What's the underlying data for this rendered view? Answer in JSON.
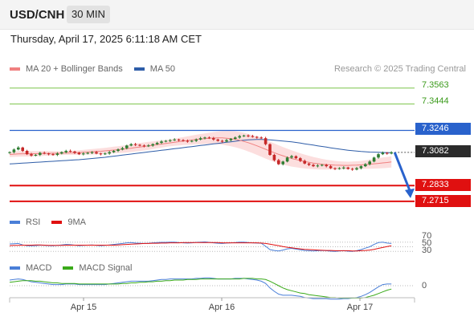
{
  "header": {
    "pair": "USD/CNH",
    "timeframe": "30 MIN"
  },
  "datetime": "Thursday, April 17, 2025 6:11:18 AM CET",
  "legend": {
    "ma20_label": "MA 20 + Bollinger Bands",
    "ma50_label": "MA 50",
    "rsi_label": "RSI",
    "rsi_signal_label": "9MA",
    "macd_label": "MACD",
    "macd_signal_label": "MACD Signal"
  },
  "credit": "Research © 2025 Trading Central",
  "colors": {
    "ma20": "#f08080",
    "ma50": "#2e5da8",
    "band": "#fbd3d3",
    "green_level": "#7cc44a",
    "pivot": "#2962cc",
    "support": "#e01010",
    "candle_up": "#2e7d32",
    "candle_down": "#c62828",
    "arrow": "#2962cc",
    "rsi": "#4a7fd8",
    "rsi_ma": "#e01010",
    "macd": "#4a7fd8",
    "macd_signal": "#3aaa1a"
  },
  "levels": [
    {
      "value": 7.3563,
      "label": "7.3563",
      "kind": "resistance-target",
      "style": "green"
    },
    {
      "value": 7.3444,
      "label": "7.3444",
      "kind": "resistance-target",
      "style": "green"
    },
    {
      "value": 7.3246,
      "label": "7.3246",
      "kind": "pivot",
      "style": "blue"
    },
    {
      "value": 7.3082,
      "label": "7.3082",
      "kind": "last-price",
      "style": "dark"
    },
    {
      "value": 7.2833,
      "label": "7.2833",
      "kind": "support-target",
      "style": "red"
    },
    {
      "value": 7.2715,
      "label": "7.2715",
      "kind": "support-target",
      "style": "red"
    }
  ],
  "rsi_ticks": [
    "70",
    "50",
    "30"
  ],
  "macd_ticks": [
    "0"
  ],
  "chart_data": {
    "type": "candlestick",
    "symbol": "USD/CNH",
    "interval": "30 MIN",
    "x_ticks": [
      "Apr 15",
      "Apr 16",
      "Apr 17"
    ],
    "ylim": [
      7.263,
      7.3652
    ],
    "close": [
      7.3083,
      7.3103,
      7.3118,
      7.3093,
      7.3068,
      7.3058,
      7.3063,
      7.3078,
      7.3073,
      7.3068,
      7.3063,
      7.3073,
      7.3083,
      7.3093,
      7.3088,
      7.3078,
      7.3068,
      7.3073,
      7.3078,
      7.3083,
      7.3073,
      7.3068,
      7.3073,
      7.3083,
      7.3093,
      7.3103,
      7.3113,
      7.3133,
      7.3143,
      7.3138,
      7.3133,
      7.3128,
      7.3133,
      7.3143,
      7.3153,
      7.3163,
      7.3168,
      7.3173,
      7.3178,
      7.3173,
      7.3168,
      7.3163,
      7.3168,
      7.3178,
      7.3188,
      7.3193,
      7.3188,
      7.3178,
      7.3168,
      7.3163,
      7.3173,
      7.3183,
      7.3193,
      7.3203,
      7.3208,
      7.3203,
      7.3198,
      7.3193,
      7.3188,
      7.3143,
      7.3063,
      7.3023,
      7.2993,
      7.3013,
      7.3043,
      7.3053,
      7.3038,
      7.3018,
      7.2998,
      7.2988,
      7.2978,
      7.2983,
      7.2988,
      7.2978,
      7.2963,
      7.2958,
      7.2963,
      7.2968,
      7.2958,
      7.2953,
      7.2963,
      7.2978,
      7.2993,
      7.3013,
      7.3043,
      7.3068,
      7.3078,
      7.3073,
      7.3082
    ],
    "ma20": [
      7.3066,
      7.3068,
      7.307,
      7.3071,
      7.3071,
      7.3071,
      7.3072,
      7.3073,
      7.3074,
      7.3074,
      7.3075,
      7.3075,
      7.3076,
      7.3077,
      7.3078,
      7.3079,
      7.308,
      7.3082,
      7.3084,
      7.3086,
      7.3088,
      7.309,
      7.3093,
      7.3096,
      7.3099,
      7.3102,
      7.3105,
      7.3109,
      7.3113,
      7.3118,
      7.3122,
      7.3126,
      7.3131,
      7.3135,
      7.314,
      7.3144,
      7.3149,
      7.3153,
      7.3158,
      7.3162,
      7.3166,
      7.317,
      7.3174,
      7.3178,
      7.3181,
      7.3184,
      7.3187,
      7.3189,
      7.319,
      7.319,
      7.3188,
      7.3185,
      7.318,
      7.3173,
      7.3164,
      7.3154,
      7.3143,
      7.3131,
      7.3118,
      7.3105,
      7.3092,
      7.3079,
      7.3067,
      7.3056,
      7.3046,
      7.3036,
      7.3028,
      7.302,
      7.3013,
      7.3007,
      7.3001,
      7.2997,
      7.2993,
      7.299,
      7.2988,
      7.2986,
      7.2985,
      7.2984,
      7.2984,
      7.2985,
      7.2986,
      7.2988,
      7.299,
      7.2993,
      7.2996,
      7.2999,
      7.3003,
      7.3006,
      7.301
    ],
    "ma50": [
      7.2995,
      7.2997,
      7.2999,
      7.3001,
      7.3003,
      7.3005,
      7.3007,
      7.3009,
      7.3011,
      7.3013,
      7.3015,
      7.3017,
      7.3019,
      7.3021,
      7.3023,
      7.3025,
      7.3027,
      7.303,
      7.3033,
      7.3036,
      7.3039,
      7.3042,
      7.3045,
      7.3049,
      7.3053,
      7.3057,
      7.3061,
      7.3065,
      7.3069,
      7.3073,
      7.3077,
      7.3081,
      7.3085,
      7.3089,
      7.3093,
      7.3097,
      7.3101,
      7.3105,
      7.3109,
      7.3113,
      7.3117,
      7.3121,
      7.3125,
      7.3129,
      7.3133,
      7.3137,
      7.3141,
      7.3145,
      7.3149,
      7.3153,
      7.3157,
      7.3161,
      7.3165,
      7.3169,
      7.3173,
      7.3175,
      7.3177,
      7.3178,
      7.3178,
      7.3177,
      7.3175,
      7.3173,
      7.317,
      7.3167,
      7.3164,
      7.316,
      7.3156,
      7.3151,
      7.3146,
      7.3141,
      7.3136,
      7.3131,
      7.3126,
      7.3121,
      7.3116,
      7.3111,
      7.3106,
      7.3102,
      7.3098,
      7.3094,
      7.3091,
      7.3088,
      7.3086,
      7.3084,
      7.3083,
      7.3082,
      7.3081,
      7.308,
      7.3079
    ],
    "band_width": [
      0.002,
      0.002,
      0.0021,
      0.0021,
      0.0021,
      0.0021,
      0.002,
      0.0019,
      0.0018,
      0.0017,
      0.0016,
      0.0015,
      0.0014,
      0.0014,
      0.0015,
      0.0016,
      0.0017,
      0.0018,
      0.0019,
      0.002,
      0.0021,
      0.0022,
      0.0023,
      0.0024,
      0.0025,
      0.0026,
      0.0027,
      0.0028,
      0.0029,
      0.003,
      0.003,
      0.003,
      0.003,
      0.0029,
      0.0028,
      0.0027,
      0.0026,
      0.0026,
      0.0027,
      0.0028,
      0.003,
      0.0032,
      0.0034,
      0.0036,
      0.0038,
      0.004,
      0.0042,
      0.0045,
      0.0048,
      0.0051,
      0.0054,
      0.0057,
      0.006,
      0.0062,
      0.0064,
      0.0066,
      0.0067,
      0.0068,
      0.0069,
      0.007,
      0.007,
      0.0069,
      0.0068,
      0.0066,
      0.0064,
      0.0061,
      0.0058,
      0.0055,
      0.0052,
      0.0049,
      0.0046,
      0.0043,
      0.004,
      0.0037,
      0.0034,
      0.0032,
      0.003,
      0.0029,
      0.0028,
      0.0028,
      0.0029,
      0.003,
      0.0032,
      0.0034,
      0.0036,
      0.0038,
      0.004,
      0.0041,
      0.0042
    ],
    "rsi": [
      62,
      63,
      64,
      58,
      55,
      54,
      55,
      57,
      56,
      55,
      54,
      56,
      58,
      60,
      59,
      57,
      55,
      56,
      57,
      58,
      56,
      55,
      56,
      58,
      60,
      62,
      64,
      67,
      68,
      66,
      65,
      64,
      65,
      67,
      68,
      69,
      69,
      70,
      70,
      68,
      67,
      66,
      67,
      69,
      70,
      71,
      69,
      67,
      65,
      64,
      66,
      67,
      68,
      70,
      70,
      68,
      67,
      66,
      65,
      52,
      38,
      34,
      32,
      36,
      41,
      43,
      40,
      37,
      34,
      33,
      32,
      33,
      34,
      33,
      31,
      30,
      32,
      33,
      31,
      30,
      33,
      38,
      44,
      50,
      60,
      68,
      70,
      66,
      64
    ],
    "rsi_9ma": [
      55,
      56,
      56,
      57,
      57,
      57,
      58,
      58,
      57,
      56,
      56,
      56,
      56,
      57,
      57,
      57,
      57,
      57,
      57,
      57,
      57,
      57,
      57,
      57,
      57,
      58,
      59,
      60,
      61,
      62,
      63,
      64,
      64,
      65,
      65,
      66,
      66,
      67,
      67,
      67,
      68,
      68,
      68,
      68,
      68,
      68,
      68,
      68,
      68,
      67,
      67,
      67,
      67,
      67,
      67,
      67,
      67,
      67,
      66,
      64,
      61,
      58,
      55,
      51,
      48,
      46,
      43,
      41,
      39,
      38,
      37,
      36,
      35,
      34,
      34,
      33,
      33,
      33,
      33,
      32,
      32,
      33,
      34,
      36,
      39,
      43,
      47,
      51,
      54
    ],
    "macd": [
      0.001,
      0.0011,
      0.0012,
      0.0011,
      0.0009,
      0.0007,
      0.0006,
      0.0005,
      0.0004,
      0.0003,
      0.0002,
      0.0002,
      0.0002,
      0.0003,
      0.0003,
      0.0003,
      0.0002,
      0.0002,
      0.0002,
      0.0002,
      0.0002,
      0.0002,
      0.0002,
      0.0003,
      0.0004,
      0.0005,
      0.0006,
      0.0007,
      0.0008,
      0.0008,
      0.0008,
      0.0008,
      0.0008,
      0.0009,
      0.001,
      0.0011,
      0.0011,
      0.0012,
      0.0012,
      0.0012,
      0.0012,
      0.0012,
      0.0012,
      0.0013,
      0.0013,
      0.0014,
      0.0014,
      0.0013,
      0.0012,
      0.0012,
      0.0012,
      0.0012,
      0.0013,
      0.0013,
      0.0013,
      0.0012,
      0.0011,
      0.001,
      0.0008,
      0.0004,
      -0.0004,
      -0.001,
      -0.0015,
      -0.0017,
      -0.0017,
      -0.0017,
      -0.0018,
      -0.0019,
      -0.0021,
      -0.0022,
      -0.0023,
      -0.0023,
      -0.0023,
      -0.0023,
      -0.0024,
      -0.0024,
      -0.0024,
      -0.0023,
      -0.0023,
      -0.0022,
      -0.0021,
      -0.0019,
      -0.0016,
      -0.0012,
      -0.0007,
      -0.0002,
      0.0002,
      0.0003,
      0.0003
    ],
    "macd_signal": [
      0.0006,
      0.0007,
      0.0008,
      0.0009,
      0.0009,
      0.0009,
      0.0008,
      0.0008,
      0.0007,
      0.0006,
      0.0005,
      0.0005,
      0.0004,
      0.0004,
      0.0004,
      0.0004,
      0.0003,
      0.0003,
      0.0003,
      0.0003,
      0.0003,
      0.0003,
      0.0003,
      0.0003,
      0.0003,
      0.0003,
      0.0004,
      0.0004,
      0.0005,
      0.0005,
      0.0006,
      0.0006,
      0.0007,
      0.0007,
      0.0008,
      0.0008,
      0.0009,
      0.0009,
      0.001,
      0.001,
      0.001,
      0.0011,
      0.0011,
      0.0011,
      0.0012,
      0.0012,
      0.0012,
      0.0012,
      0.0012,
      0.0012,
      0.0012,
      0.0012,
      0.0012,
      0.0012,
      0.0013,
      0.0013,
      0.0013,
      0.0012,
      0.0012,
      0.0011,
      0.0008,
      0.0004,
      0.0,
      -0.0004,
      -0.0007,
      -0.0009,
      -0.0011,
      -0.0013,
      -0.0014,
      -0.0016,
      -0.0017,
      -0.0018,
      -0.0019,
      -0.002,
      -0.0021,
      -0.0021,
      -0.0022,
      -0.0022,
      -0.0022,
      -0.0022,
      -0.0022,
      -0.0022,
      -0.0021,
      -0.0019,
      -0.0017,
      -0.0014,
      -0.0011,
      -0.0008,
      -0.0006
    ],
    "projection": {
      "from": 7.3082,
      "to": 7.2745,
      "direction": "down"
    }
  }
}
